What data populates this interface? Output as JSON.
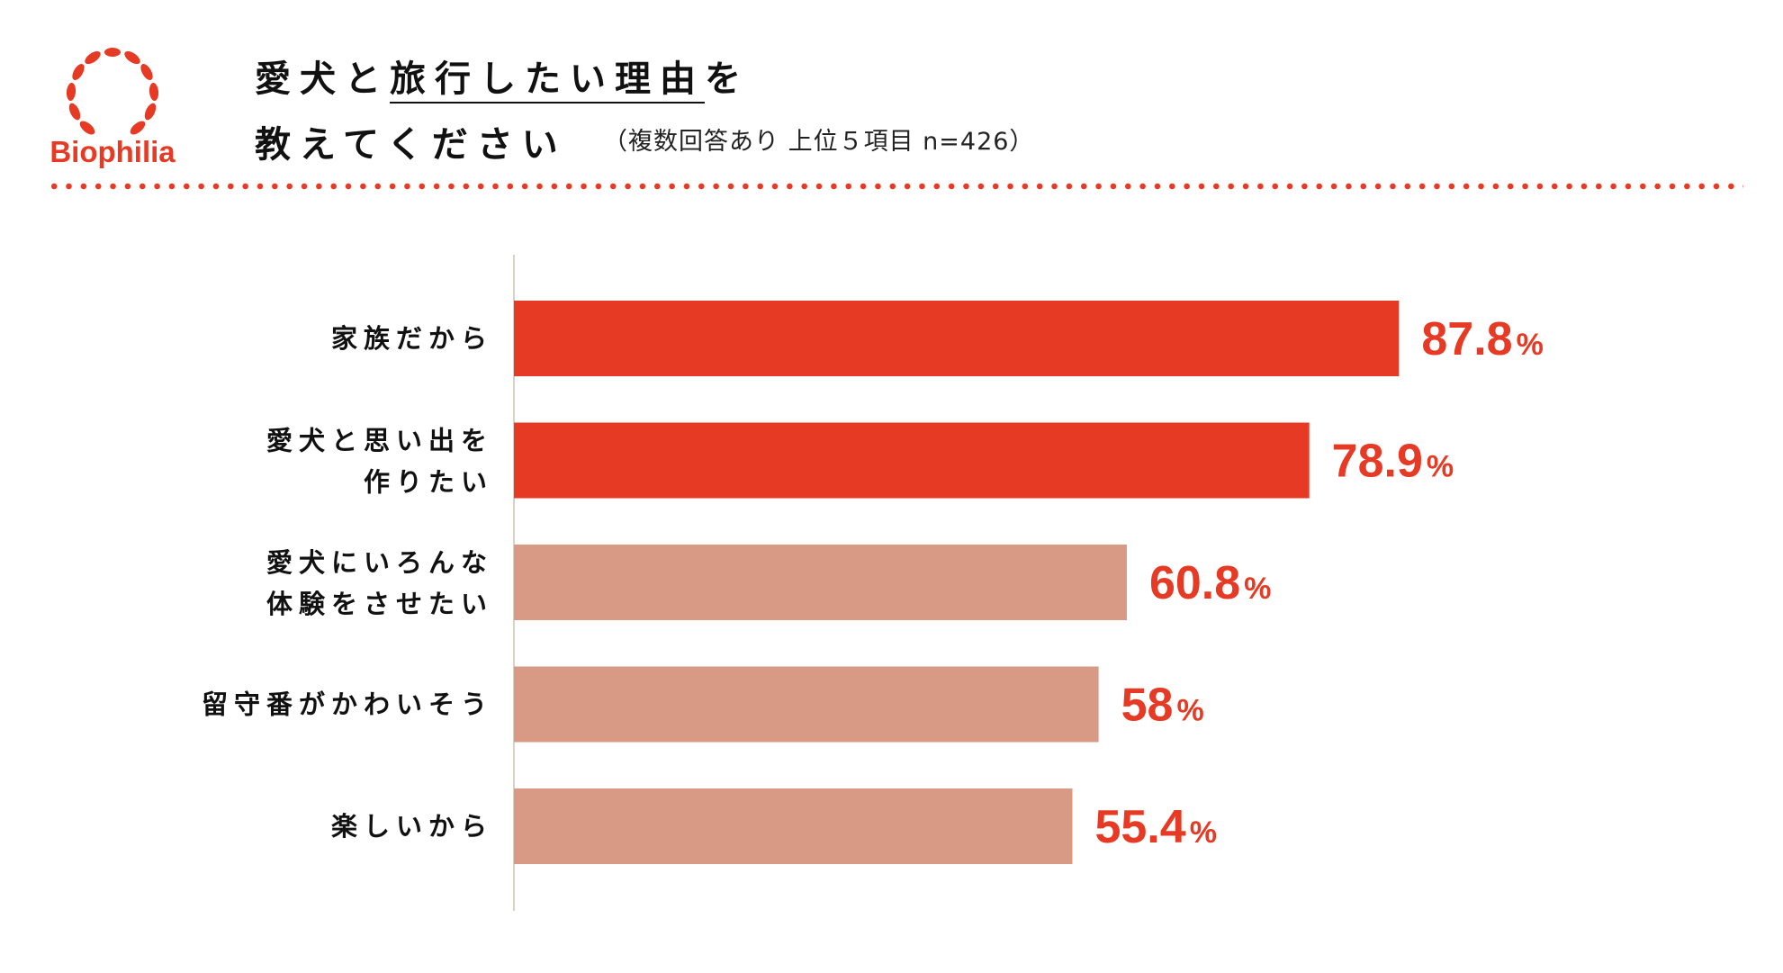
{
  "brand": {
    "name": "Biophilia",
    "accent": "#e63a24"
  },
  "title": {
    "line1_pre": "愛犬と",
    "line1_underlined": "旅行したい理由",
    "line1_post": "を",
    "line2": "教えてください",
    "subtitle": "（複数回答あり 上位５項目 n=426）"
  },
  "chart_data": {
    "type": "bar",
    "orientation": "horizontal",
    "unit": "%",
    "categories": [
      [
        "家族だから"
      ],
      [
        "愛犬と思い出を",
        "作りたい"
      ],
      [
        "愛犬にいろんな",
        "体験をさせたい"
      ],
      [
        "留守番がかわいそう"
      ],
      [
        "楽しいから"
      ]
    ],
    "values": [
      87.8,
      78.9,
      60.8,
      58,
      55.4
    ],
    "value_labels": [
      "87.8",
      "78.9",
      "60.8",
      "58",
      "55.4"
    ],
    "bar_colors": [
      "#e63a24",
      "#e63a24",
      "#d99a85",
      "#d99a85",
      "#d99a85"
    ],
    "xlim": [
      0,
      100
    ],
    "grid": false,
    "legend": "none"
  }
}
